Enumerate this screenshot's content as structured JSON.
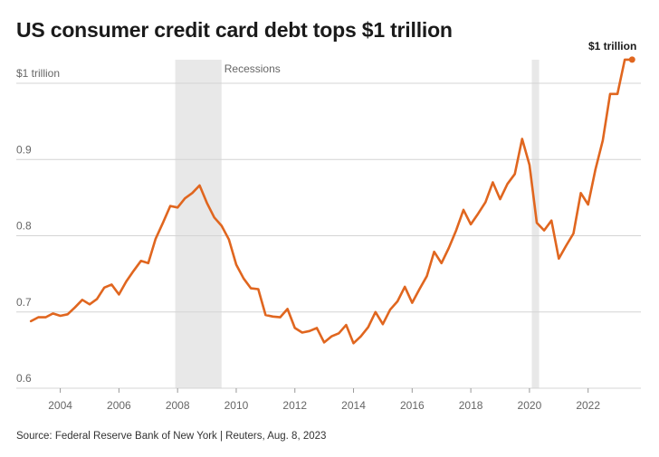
{
  "title": "US consumer credit card debt tops $1 trillion",
  "source": "Source: Federal Reserve Bank of New York | Reuters, Aug. 8, 2023",
  "colors": {
    "line": "#e0661f",
    "recession": "#e8e8e8",
    "grid": "#d4d4d4"
  },
  "chart_data": {
    "type": "line",
    "title": "US consumer credit card debt tops $1 trillion",
    "xlabel": "",
    "ylabel": "",
    "xlim": [
      2002.5,
      2023.8
    ],
    "ylim": [
      0.6,
      1.03
    ],
    "x_ticks": [
      {
        "value": 2004,
        "label": "2004"
      },
      {
        "value": 2006,
        "label": "2006"
      },
      {
        "value": 2008,
        "label": "2008"
      },
      {
        "value": 2010,
        "label": "2010"
      },
      {
        "value": 2012,
        "label": "2012"
      },
      {
        "value": 2014,
        "label": "2014"
      },
      {
        "value": 2016,
        "label": "2016"
      },
      {
        "value": 2018,
        "label": "2018"
      },
      {
        "value": 2020,
        "label": "2020"
      },
      {
        "value": 2022,
        "label": "2022"
      }
    ],
    "y_ticks": [
      {
        "value": 1.0,
        "label": "$1 trillion"
      },
      {
        "value": 0.9,
        "label": "0.9"
      },
      {
        "value": 0.8,
        "label": "0.8"
      },
      {
        "value": 0.7,
        "label": "0.7"
      },
      {
        "value": 0.6,
        "label": "0.6"
      }
    ],
    "grid": "horizontal",
    "recessions": {
      "label": "Recessions",
      "periods": [
        [
          2007.92,
          2009.5
        ],
        [
          2020.08,
          2020.33
        ]
      ]
    },
    "end_label": "$1 trillion",
    "series": [
      {
        "x": [
          2003.0,
          2003.25,
          2003.5,
          2003.75,
          2004.0,
          2004.25,
          2004.5,
          2004.75,
          2005.0,
          2005.25,
          2005.5,
          2005.75,
          2006.0,
          2006.25,
          2006.5,
          2006.75,
          2007.0,
          2007.25,
          2007.5,
          2007.75,
          2008.0,
          2008.25,
          2008.5,
          2008.75,
          2009.0,
          2009.25,
          2009.5,
          2009.75,
          2010.0,
          2010.25,
          2010.5,
          2010.75,
          2011.0,
          2011.25,
          2011.5,
          2011.75,
          2012.0,
          2012.25,
          2012.5,
          2012.75,
          2013.0,
          2013.25,
          2013.5,
          2013.75,
          2014.0,
          2014.25,
          2014.5,
          2014.75,
          2015.0,
          2015.25,
          2015.5,
          2015.75,
          2016.0,
          2016.25,
          2016.5,
          2016.75,
          2017.0,
          2017.25,
          2017.5,
          2017.75,
          2018.0,
          2018.25,
          2018.5,
          2018.75,
          2019.0,
          2019.25,
          2019.5,
          2019.75,
          2020.0,
          2020.25,
          2020.5,
          2020.75,
          2021.0,
          2021.25,
          2021.5,
          2021.75,
          2022.0,
          2022.25,
          2022.5,
          2022.75,
          2023.0,
          2023.25,
          2023.5
        ],
        "values": [
          0.688,
          0.693,
          0.693,
          0.698,
          0.695,
          0.697,
          0.706,
          0.716,
          0.71,
          0.717,
          0.732,
          0.736,
          0.723,
          0.74,
          0.754,
          0.767,
          0.764,
          0.796,
          0.817,
          0.839,
          0.837,
          0.849,
          0.856,
          0.866,
          0.843,
          0.824,
          0.813,
          0.795,
          0.762,
          0.744,
          0.731,
          0.73,
          0.696,
          0.694,
          0.693,
          0.704,
          0.679,
          0.673,
          0.675,
          0.679,
          0.66,
          0.668,
          0.672,
          0.683,
          0.659,
          0.668,
          0.68,
          0.7,
          0.684,
          0.703,
          0.714,
          0.733,
          0.712,
          0.73,
          0.747,
          0.779,
          0.764,
          0.784,
          0.807,
          0.834,
          0.815,
          0.829,
          0.844,
          0.87,
          0.848,
          0.868,
          0.881,
          0.927,
          0.893,
          0.817,
          0.807,
          0.82,
          0.77,
          0.787,
          0.803,
          0.856,
          0.841,
          0.887,
          0.925,
          0.986,
          0.986,
          1.031,
          1.031
        ]
      }
    ]
  }
}
